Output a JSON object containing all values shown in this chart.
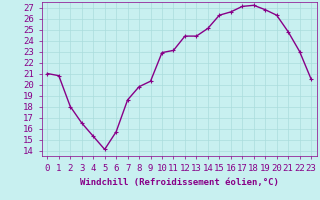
{
  "x": [
    0,
    1,
    2,
    3,
    4,
    5,
    6,
    7,
    8,
    9,
    10,
    11,
    12,
    13,
    14,
    15,
    16,
    17,
    18,
    19,
    20,
    21,
    22,
    23
  ],
  "y": [
    21.0,
    20.8,
    18.0,
    16.5,
    15.3,
    14.1,
    15.7,
    18.6,
    19.8,
    20.3,
    22.9,
    23.1,
    24.4,
    24.4,
    25.1,
    26.3,
    26.6,
    27.1,
    27.2,
    26.8,
    26.3,
    24.8,
    23.0,
    20.5
  ],
  "line_color": "#880088",
  "marker": "+",
  "bg_color": "#c8f0f0",
  "grid_color": "#aadddd",
  "ylabel_ticks": [
    14,
    15,
    16,
    17,
    18,
    19,
    20,
    21,
    22,
    23,
    24,
    25,
    26,
    27
  ],
  "xlim": [
    -0.5,
    23.5
  ],
  "ylim": [
    13.5,
    27.5
  ],
  "xlabel": "Windchill (Refroidissement éolien,°C)",
  "xlabel_fontsize": 6.5,
  "tick_fontsize": 6.5,
  "marker_size": 3,
  "line_width": 1.0
}
